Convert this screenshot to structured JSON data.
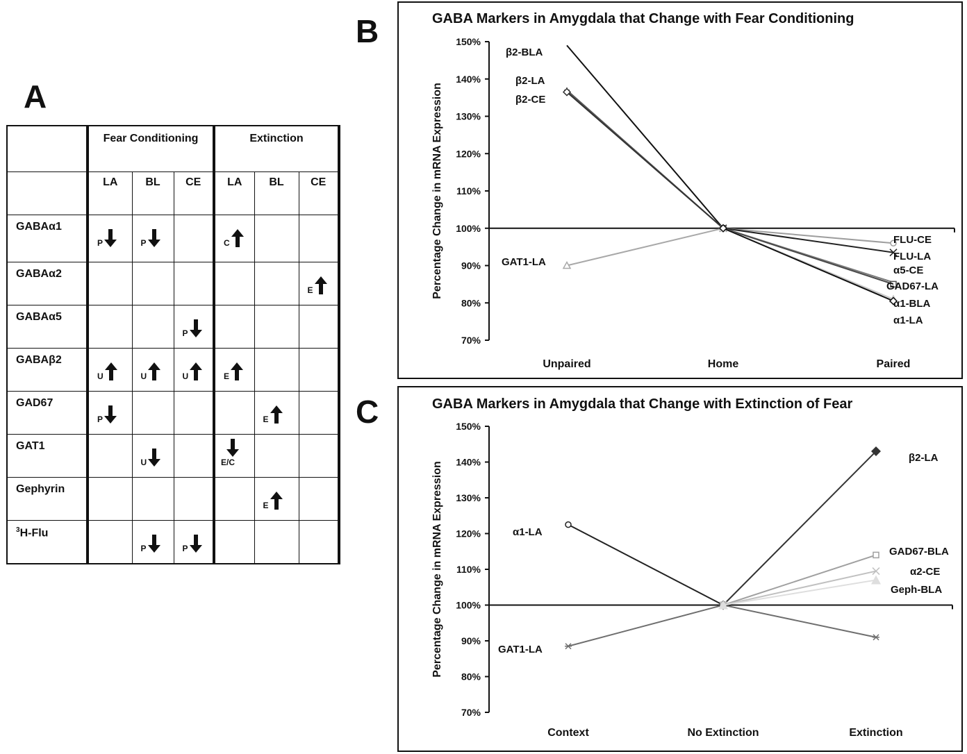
{
  "panels": {
    "a": "A",
    "b": "B",
    "c": "C"
  },
  "table": {
    "groups": [
      "Fear Conditioning",
      "Extinction"
    ],
    "columns": [
      "LA",
      "BL",
      "CE",
      "LA",
      "BL",
      "CE"
    ],
    "rows": [
      {
        "label": "GABA",
        "greek": "α1",
        "cells": [
          {
            "letter": "P",
            "dir": "down"
          },
          {
            "letter": "P",
            "dir": "down"
          },
          null,
          {
            "letter": "C",
            "dir": "up"
          },
          null,
          null
        ]
      },
      {
        "label": "GABA",
        "greek": "α2",
        "cells": [
          null,
          null,
          null,
          null,
          null,
          {
            "letter": "E",
            "dir": "up"
          }
        ]
      },
      {
        "label": "GABA",
        "greek": "α5",
        "cells": [
          null,
          null,
          {
            "letter": "P",
            "dir": "down"
          },
          null,
          null,
          null
        ]
      },
      {
        "label": "GABA",
        "greek": "β2",
        "cells": [
          {
            "letter": "U",
            "dir": "up"
          },
          {
            "letter": "U",
            "dir": "up"
          },
          {
            "letter": "U",
            "dir": "up"
          },
          {
            "letter": "E",
            "dir": "up"
          },
          null,
          null
        ]
      },
      {
        "label": "GAD67",
        "greek": "",
        "cells": [
          {
            "letter": "P",
            "dir": "down"
          },
          null,
          null,
          null,
          {
            "letter": "E",
            "dir": "up"
          },
          null
        ]
      },
      {
        "label": "GAT1",
        "greek": "",
        "cells": [
          null,
          {
            "letter": "U",
            "dir": "down"
          },
          null,
          {
            "letter": "E/C",
            "dir": "down",
            "below": true
          },
          null,
          null
        ]
      },
      {
        "label": "Gephyrin",
        "greek": "",
        "cells": [
          null,
          null,
          null,
          null,
          {
            "letter": "E",
            "dir": "up"
          },
          null
        ]
      },
      {
        "label": "H-Flu",
        "sup": "3",
        "greek": "",
        "cells": [
          null,
          {
            "letter": "P",
            "dir": "down"
          },
          {
            "letter": "P",
            "dir": "down"
          },
          null,
          null,
          null
        ]
      }
    ]
  },
  "chart_data": [
    {
      "type": "line",
      "title": "GABA Markers in Amygdala that Change with Fear Conditioning",
      "xlabel": "",
      "ylabel": "Percentage Change in mRNA Expression",
      "categories": [
        "Unpaired",
        "Home",
        "Paired"
      ],
      "ylim": [
        70,
        150
      ],
      "yticks": [
        "70%",
        "80%",
        "90%",
        "100%",
        "110%",
        "120%",
        "130%",
        "140%",
        "150%"
      ],
      "grid": false,
      "series": [
        {
          "name": "β2-BLA",
          "values": [
            149,
            100,
            null
          ],
          "color": "#111111",
          "marker": "none"
        },
        {
          "name": "β2-LA",
          "values": [
            137,
            100,
            null
          ],
          "color": "#555555",
          "marker": "plus"
        },
        {
          "name": "β2-CE",
          "values": [
            136.5,
            100,
            null
          ],
          "color": "#333333",
          "marker": "diamond"
        },
        {
          "name": "GAT1-LA",
          "values": [
            90,
            100,
            null
          ],
          "color": "#a8a8a8",
          "marker": "triangle"
        },
        {
          "name": "FLU-CE",
          "values": [
            null,
            100,
            96
          ],
          "color": "#9e9e9e",
          "marker": "circle"
        },
        {
          "name": "FLU-LA",
          "values": [
            null,
            100,
            93.5
          ],
          "color": "#222222",
          "marker": "x"
        },
        {
          "name": "α5-CE",
          "values": [
            null,
            100,
            85.5
          ],
          "color": "#7a7a7a",
          "marker": "none"
        },
        {
          "name": "GAD67-LA",
          "values": [
            null,
            100,
            85
          ],
          "color": "#4a4a4a",
          "marker": "square"
        },
        {
          "name": "α1-BLA",
          "values": [
            null,
            100,
            81
          ],
          "color": "#c8c8c8",
          "marker": "triangle"
        },
        {
          "name": "α1-LA",
          "values": [
            null,
            100,
            80.5
          ],
          "color": "#111111",
          "marker": "diamond"
        }
      ]
    },
    {
      "type": "line",
      "title": "GABA Markers in Amygdala that Change with Extinction of Fear",
      "xlabel": "",
      "ylabel": "Percentage Change in mRNA Expression",
      "categories": [
        "Context",
        "No Extinction",
        "Extinction"
      ],
      "ylim": [
        70,
        150
      ],
      "yticks": [
        "70%",
        "80%",
        "90%",
        "100%",
        "110%",
        "120%",
        "130%",
        "140%",
        "150%"
      ],
      "grid": false,
      "series": [
        {
          "name": "α1-LA",
          "values": [
            122.5,
            100,
            null
          ],
          "color": "#222222",
          "marker": "circle"
        },
        {
          "name": "GAT1-LA",
          "values": [
            88.5,
            100,
            91
          ],
          "color": "#6e6e6e",
          "marker": "star"
        },
        {
          "name": "β2-LA",
          "values": [
            null,
            100,
            143
          ],
          "color": "#333333",
          "marker": "diamond-filled"
        },
        {
          "name": "GAD67-BLA",
          "values": [
            null,
            100,
            114
          ],
          "color": "#a0a0a0",
          "marker": "square"
        },
        {
          "name": "α2-CE",
          "values": [
            null,
            100,
            109.5
          ],
          "color": "#c0c0c0",
          "marker": "x"
        },
        {
          "name": "Geph-BLA",
          "values": [
            null,
            100,
            107
          ],
          "color": "#dedede",
          "marker": "triangle-filled"
        }
      ]
    }
  ]
}
